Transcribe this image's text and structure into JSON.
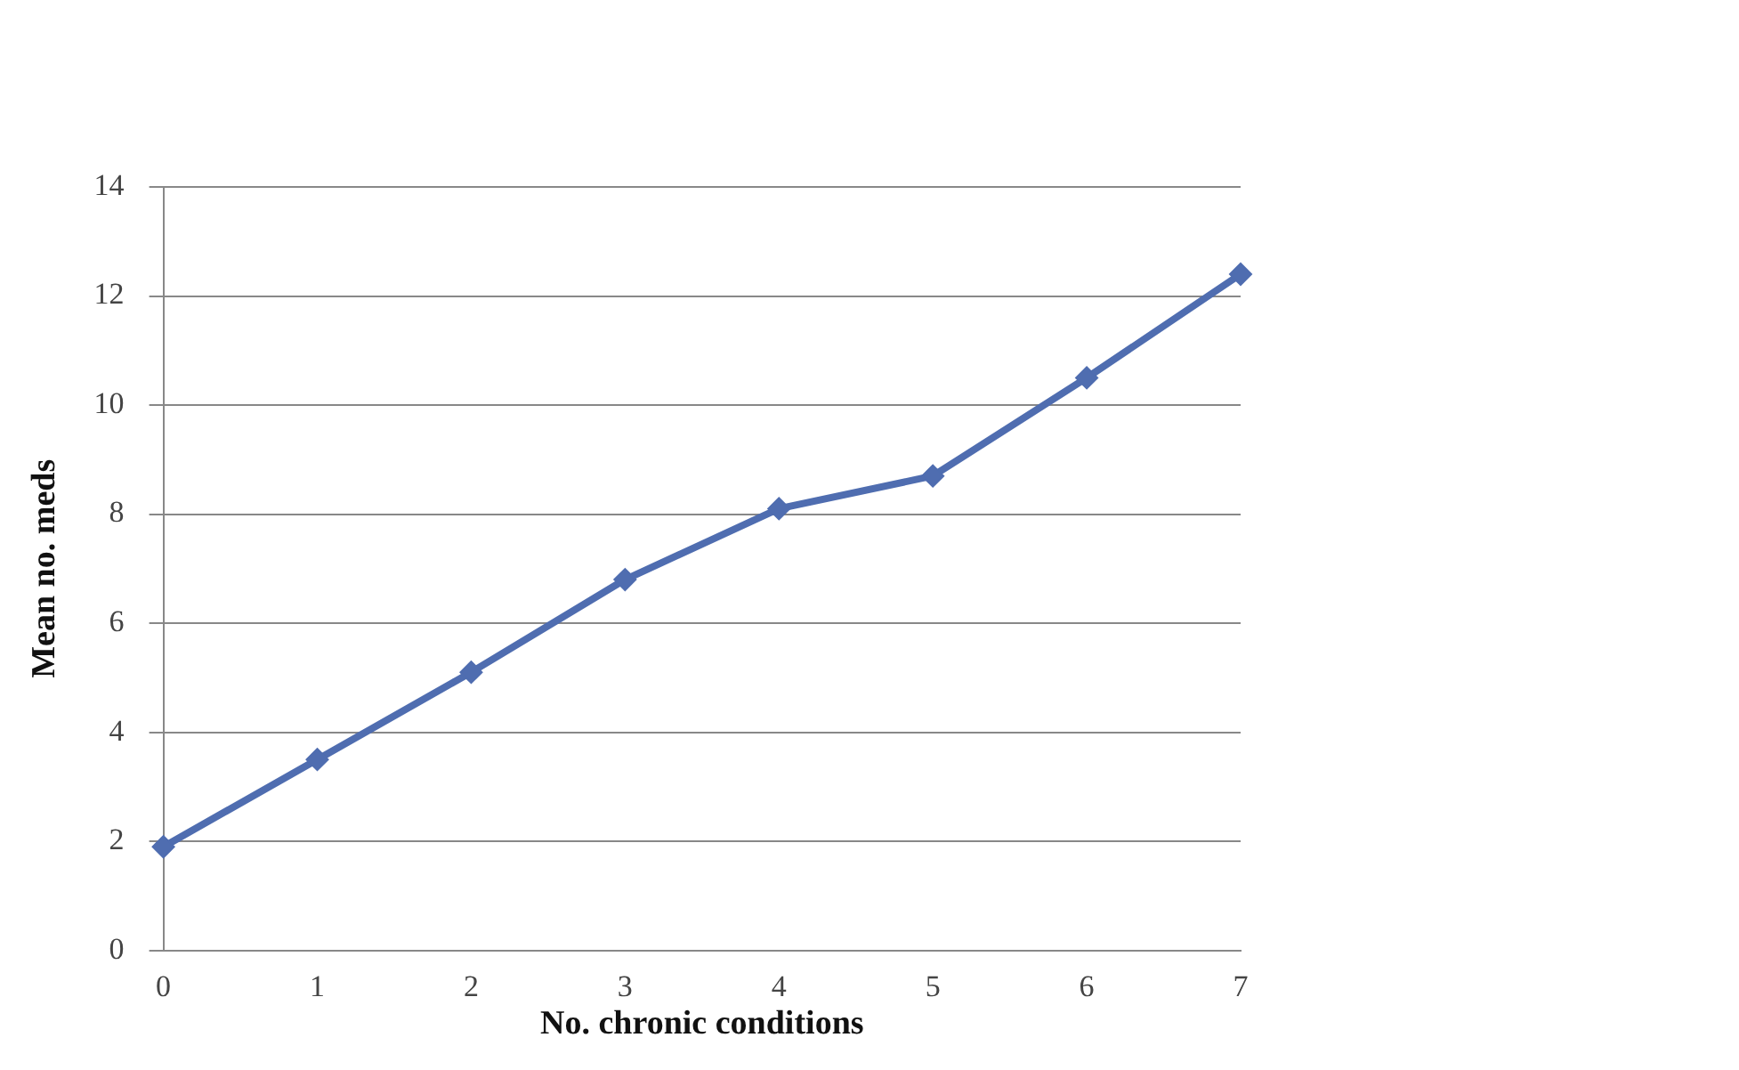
{
  "chart_data": {
    "type": "line",
    "xlabel": "No. chronic conditions",
    "ylabel": "Mean no. meds",
    "categories": [
      "0",
      "1",
      "2",
      "3",
      "4",
      "5",
      "6",
      "7"
    ],
    "series": [
      {
        "color": "#4f6db0",
        "values": [
          1.9,
          3.5,
          5.1,
          6.8,
          8.1,
          8.7,
          10.5,
          12.4
        ]
      }
    ],
    "ylim": [
      0,
      14
    ],
    "yticks": [
      0,
      2,
      4,
      6,
      8,
      10,
      12,
      14
    ],
    "grid": "y",
    "legend": false,
    "marker": "diamond",
    "line_style": "solid"
  }
}
